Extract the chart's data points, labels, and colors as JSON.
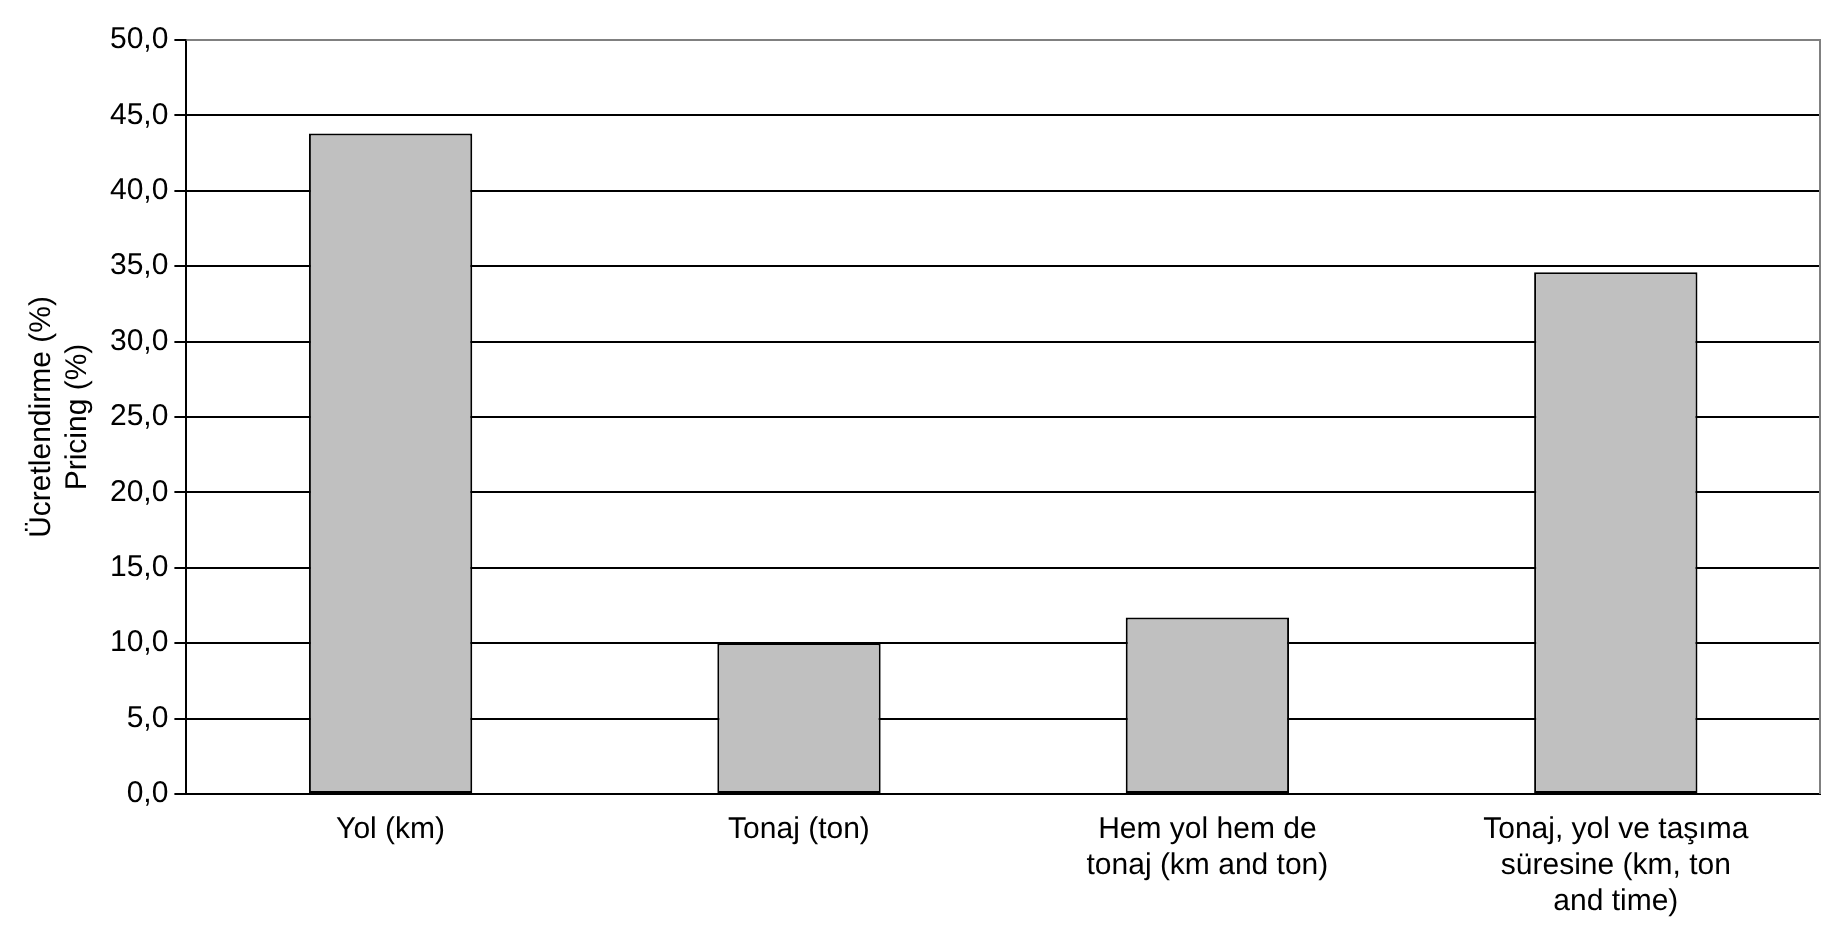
{
  "chart_data": {
    "type": "bar",
    "ylabel": "Ücretlendirme (%)\nPricing (%)",
    "categories": [
      "Yol (km)",
      "Tonaj (ton)",
      "Hem yol hem de tonaj (km and ton)",
      "Tonaj, yol ve taşıma süresine (km, ton and time)"
    ],
    "values": [
      43.8,
      10.0,
      11.7,
      34.6
    ],
    "color": "#c0c0c0",
    "ylim": [
      0,
      50
    ],
    "yticks": [
      {
        "value": 0,
        "label": "0,0"
      },
      {
        "value": 5,
        "label": "5,0"
      },
      {
        "value": 10,
        "label": "10,0"
      },
      {
        "value": 15,
        "label": "15,0"
      },
      {
        "value": 20,
        "label": "20,0"
      },
      {
        "value": 25,
        "label": "25,0"
      },
      {
        "value": 30,
        "label": "30,0"
      },
      {
        "value": 35,
        "label": "35,0"
      },
      {
        "value": 40,
        "label": "40,0"
      },
      {
        "value": 45,
        "label": "45,0"
      },
      {
        "value": 50,
        "label": "50,0"
      }
    ],
    "grid": "y"
  }
}
